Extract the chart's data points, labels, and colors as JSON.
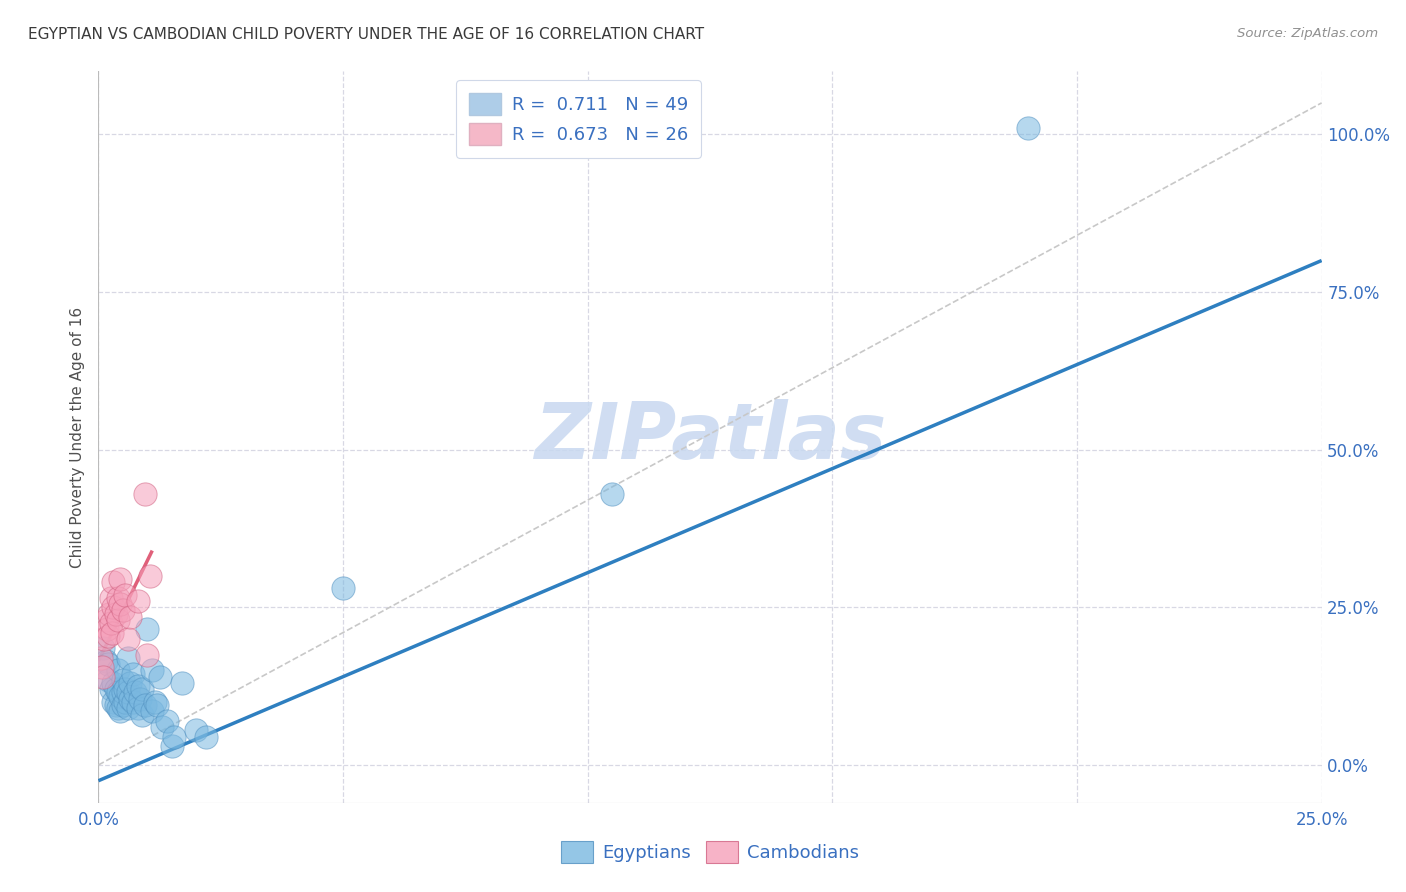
{
  "title": "EGYPTIAN VS CAMBODIAN CHILD POVERTY UNDER THE AGE OF 16 CORRELATION CHART",
  "source": "Source: ZipAtlas.com",
  "ylabel": "Child Poverty Under the Age of 16",
  "watermark": "ZIPatlas",
  "xlim": [
    0.0,
    0.25
  ],
  "ylim": [
    -0.06,
    1.1
  ],
  "xticks": [
    0.0,
    0.05,
    0.1,
    0.15,
    0.2,
    0.25
  ],
  "yticks": [
    0.0,
    0.25,
    0.5,
    0.75,
    1.0
  ],
  "xticklabels_bottom": [
    "0.0%",
    "",
    "",
    "",
    "",
    "25.0%"
  ],
  "yticklabels_right": [
    "0.0%",
    "25.0%",
    "50.0%",
    "75.0%",
    "100.0%"
  ],
  "legend_entries": [
    {
      "label": "R =  0.711   N = 49",
      "facecolor": "#aecde8"
    },
    {
      "label": "R =  0.673   N = 26",
      "facecolor": "#f5b8c8"
    }
  ],
  "legend_bottom": [
    "Egyptians",
    "Cambodians"
  ],
  "blue_scatter_color": "#7ab8e0",
  "pink_scatter_color": "#f5a0ba",
  "blue_edge_color": "#5090c0",
  "pink_edge_color": "#d06080",
  "blue_line_color": "#2e7fc0",
  "pink_line_color": "#e0607a",
  "gray_dashed_color": "#c8c8c8",
  "grid_color": "#d8d8e4",
  "bg_color": "#ffffff",
  "title_color": "#3a3a3a",
  "source_color": "#909090",
  "axis_label_color": "#505050",
  "tick_color": "#3a70c0",
  "watermark_color": "#c8d8f0",
  "watermark_alpha": 0.85,
  "blue_scatter": [
    [
      0.001,
      0.185
    ],
    [
      0.0015,
      0.165
    ],
    [
      0.002,
      0.135
    ],
    [
      0.002,
      0.16
    ],
    [
      0.0025,
      0.12
    ],
    [
      0.003,
      0.1
    ],
    [
      0.003,
      0.13
    ],
    [
      0.0035,
      0.095
    ],
    [
      0.0035,
      0.12
    ],
    [
      0.004,
      0.09
    ],
    [
      0.004,
      0.115
    ],
    [
      0.004,
      0.15
    ],
    [
      0.0045,
      0.085
    ],
    [
      0.0045,
      0.11
    ],
    [
      0.005,
      0.095
    ],
    [
      0.005,
      0.115
    ],
    [
      0.005,
      0.135
    ],
    [
      0.0055,
      0.1
    ],
    [
      0.0055,
      0.12
    ],
    [
      0.006,
      0.09
    ],
    [
      0.006,
      0.115
    ],
    [
      0.006,
      0.17
    ],
    [
      0.0065,
      0.105
    ],
    [
      0.0065,
      0.13
    ],
    [
      0.007,
      0.1
    ],
    [
      0.007,
      0.145
    ],
    [
      0.0075,
      0.115
    ],
    [
      0.008,
      0.09
    ],
    [
      0.008,
      0.125
    ],
    [
      0.0085,
      0.105
    ],
    [
      0.009,
      0.08
    ],
    [
      0.009,
      0.12
    ],
    [
      0.0095,
      0.095
    ],
    [
      0.01,
      0.215
    ],
    [
      0.011,
      0.085
    ],
    [
      0.011,
      0.15
    ],
    [
      0.0115,
      0.1
    ],
    [
      0.012,
      0.095
    ],
    [
      0.0125,
      0.14
    ],
    [
      0.013,
      0.06
    ],
    [
      0.014,
      0.07
    ],
    [
      0.015,
      0.03
    ],
    [
      0.0155,
      0.045
    ],
    [
      0.017,
      0.13
    ],
    [
      0.02,
      0.055
    ],
    [
      0.022,
      0.045
    ],
    [
      0.05,
      0.28
    ],
    [
      0.105,
      0.43
    ],
    [
      0.19,
      1.01
    ]
  ],
  "pink_scatter": [
    [
      0.0005,
      0.17
    ],
    [
      0.0008,
      0.155
    ],
    [
      0.001,
      0.14
    ],
    [
      0.0012,
      0.2
    ],
    [
      0.0015,
      0.23
    ],
    [
      0.0018,
      0.215
    ],
    [
      0.002,
      0.205
    ],
    [
      0.0022,
      0.24
    ],
    [
      0.0025,
      0.225
    ],
    [
      0.0025,
      0.265
    ],
    [
      0.0028,
      0.21
    ],
    [
      0.003,
      0.25
    ],
    [
      0.003,
      0.29
    ],
    [
      0.0035,
      0.24
    ],
    [
      0.004,
      0.23
    ],
    [
      0.004,
      0.265
    ],
    [
      0.0045,
      0.255
    ],
    [
      0.0045,
      0.295
    ],
    [
      0.005,
      0.245
    ],
    [
      0.0055,
      0.27
    ],
    [
      0.006,
      0.2
    ],
    [
      0.0065,
      0.235
    ],
    [
      0.008,
      0.26
    ],
    [
      0.0095,
      0.43
    ],
    [
      0.01,
      0.175
    ],
    [
      0.0105,
      0.3
    ]
  ],
  "blue_line": {
    "x0": 0.0,
    "y0": -0.025,
    "x1": 0.25,
    "y1": 0.8
  },
  "pink_line": {
    "x0": 0.0,
    "y0": 0.165,
    "x1": 0.011,
    "y1": 0.34
  },
  "gray_dashed_line": {
    "x0": 0.0,
    "y0": 0.0,
    "x1": 0.25,
    "y1": 1.05
  }
}
